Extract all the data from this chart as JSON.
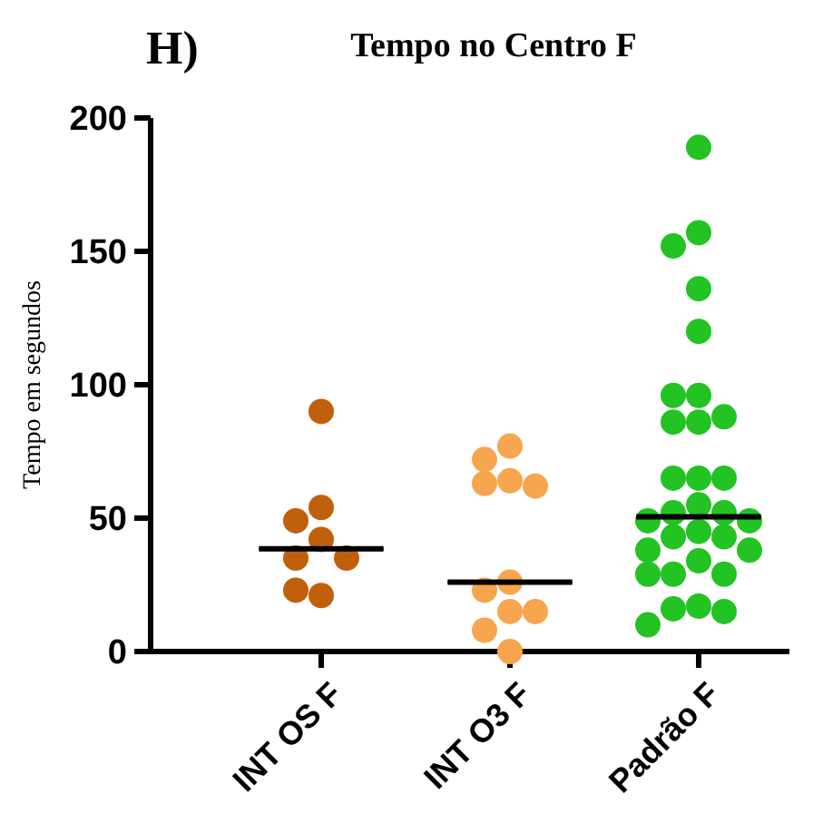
{
  "chart_data": {
    "type": "scatter",
    "title": "Tempo no Centro F",
    "ylabel": "Tempo em segundos",
    "annotations": [
      "H)"
    ],
    "categories": [
      "INT OS F",
      "INT O3 F",
      "Padrão F"
    ],
    "ylim": [
      0,
      200
    ],
    "yticks": [
      0,
      50,
      100,
      150,
      200
    ],
    "grid": false,
    "marker": "circle",
    "series": [
      {
        "color": "#c0600c",
        "x": [
          "INT OS F",
          "INT OS F",
          "INT OS F",
          "INT OS F",
          "INT OS F",
          "INT OS F",
          "INT OS F",
          "INT OS F"
        ],
        "values": [
          90,
          54,
          49,
          42,
          35,
          35,
          21,
          23
        ]
      },
      {
        "color": "#f7a54e",
        "x": [
          "INT O3 F",
          "INT O3 F",
          "INT O3 F",
          "INT O3 F",
          "INT O3 F",
          "INT O3 F",
          "INT O3 F",
          "INT O3 F",
          "INT O3 F",
          "INT O3 F",
          "INT O3 F"
        ],
        "values": [
          77,
          72,
          64,
          63,
          62,
          26,
          23,
          15,
          15,
          8,
          0
        ]
      },
      {
        "color": "#22c322",
        "x": [
          "Padrão F",
          "Padrão F",
          "Padrão F",
          "Padrão F",
          "Padrão F",
          "Padrão F",
          "Padrão F",
          "Padrão F",
          "Padrão F",
          "Padrão F",
          "Padrão F",
          "Padrão F",
          "Padrão F",
          "Padrão F",
          "Padrão F",
          "Padrão F",
          "Padrão F",
          "Padrão F",
          "Padrão F",
          "Padrão F",
          "Padrão F",
          "Padrão F",
          "Padrão F",
          "Padrão F",
          "Padrão F",
          "Padrão F",
          "Padrão F",
          "Padrão F",
          "Padrão F",
          "Padrão F",
          "Padrão F"
        ],
        "values": [
          189,
          157,
          152,
          136,
          120,
          96,
          96,
          88,
          86,
          86,
          65,
          65,
          65,
          55,
          52,
          52,
          49,
          49,
          45,
          43,
          43,
          38,
          38,
          34,
          29,
          29,
          29,
          17,
          16,
          15,
          10
        ]
      },
      {
        "type": "box",
        "color": "#000000",
        "boxes": [
          {
            "low": 38.5,
            "q1": 38.5,
            "median": 38.5,
            "q3": 38.5,
            "high": 38.5
          },
          {
            "low": 26,
            "q1": 26,
            "median": 26,
            "q3": 26,
            "high": 26
          },
          {
            "low": 50.5,
            "q1": 50.5,
            "median": 50.5,
            "q3": 50.5,
            "high": 50.5
          }
        ]
      }
    ]
  }
}
